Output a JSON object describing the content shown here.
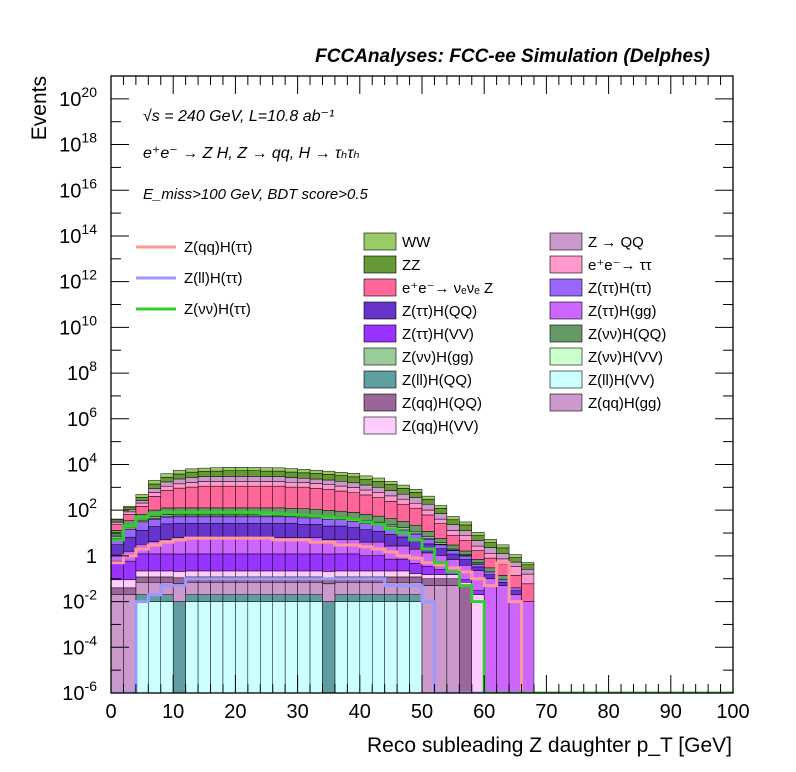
{
  "header_title": "FCCAnalyses: FCC-ee Simulation (Delphes)",
  "annotations": {
    "line1": "√s = 240 GeV, L=10.8 ab⁻¹",
    "line2": "e⁺e⁻ → Z H, Z → qq, H → τₕτₕ",
    "line3": "E_miss>100 GeV, BDT score>0.5"
  },
  "chart_data": {
    "type": "histogram",
    "xlabel": "Reco subleading Z daughter p_T [GeV]",
    "ylabel": "Events",
    "xlim": [
      0,
      100
    ],
    "ylim": [
      1e-06,
      1e+21
    ],
    "yscale": "log",
    "bin_width": 2,
    "x_ticks": [
      0,
      10,
      20,
      30,
      40,
      50,
      60,
      70,
      80,
      90,
      100
    ],
    "y_ticks": [
      "10^-6",
      "10^-4",
      "10^-2",
      "1",
      "10^2",
      "10^4",
      "10^6",
      "10^8",
      "10^10",
      "10^12",
      "10^14",
      "10^16",
      "10^18",
      "10^20"
    ],
    "stack_total": [
      40,
      150,
      550,
      2000,
      4000,
      5500,
      6500,
      7000,
      7200,
      7500,
      7500,
      7400,
      7200,
      7000,
      6500,
      6000,
      5500,
      5000,
      4500,
      4000,
      3000,
      2500,
      1800,
      1200,
      800,
      400,
      150,
      50,
      30,
      10,
      5,
      3,
      1,
      0.5
    ],
    "stacked_backgrounds": [
      {
        "name": "Z(ll)H(VV)",
        "color": "#ccffff",
        "values": [
          0,
          0,
          0.01,
          0.01,
          0.01,
          0,
          0.01,
          0.01,
          0.01,
          0.01,
          0.01,
          0.01,
          0.01,
          0.01,
          0.01,
          0.01,
          0.01,
          0,
          0.01,
          0.01,
          0.01,
          0.01,
          0.01,
          0.01,
          0.01,
          0,
          0,
          0,
          0,
          0,
          0,
          0,
          0,
          0
        ]
      },
      {
        "name": "Z(ll)H(QQ)",
        "color": "#5f9ea0",
        "values": [
          0,
          0,
          0.01,
          0.01,
          0.01,
          0.01,
          0.01,
          0.01,
          0.01,
          0.01,
          0.01,
          0.01,
          0.01,
          0.01,
          0.01,
          0.01,
          0.01,
          0.01,
          0.01,
          0.01,
          0.01,
          0.01,
          0.01,
          0.01,
          0.01,
          0,
          0,
          0,
          0,
          0,
          0,
          0,
          0,
          0
        ]
      },
      {
        "name": "Z(qq)H(gg)",
        "color": "#cc99cc",
        "values": [
          0.02,
          0.02,
          0.05,
          0.05,
          0.05,
          0.05,
          0.05,
          0.05,
          0.05,
          0.05,
          0.05,
          0.05,
          0.05,
          0.05,
          0.05,
          0.05,
          0.05,
          0.05,
          0.05,
          0.05,
          0.05,
          0.05,
          0.05,
          0.05,
          0.05,
          0.05,
          0.05,
          0.05,
          0,
          0,
          0,
          0,
          0,
          0
        ]
      },
      {
        "name": "Z(qq)H(QQ)",
        "color": "#996699",
        "values": [
          0.02,
          0.02,
          0.05,
          0.05,
          0.05,
          0.05,
          0.05,
          0.05,
          0.05,
          0.05,
          0.05,
          0.05,
          0.05,
          0.05,
          0.05,
          0.05,
          0.05,
          0.05,
          0.05,
          0.05,
          0.05,
          0.05,
          0.05,
          0.05,
          0.05,
          0.05,
          0.05,
          0.05,
          0.05,
          0,
          0,
          0,
          0,
          0
        ]
      },
      {
        "name": "Z(qq)H(VV)",
        "color": "#ffccff",
        "values": [
          0.05,
          0.05,
          0.1,
          0.1,
          0.1,
          0.1,
          0.1,
          0.1,
          0.1,
          0.1,
          0.1,
          0.1,
          0.1,
          0.1,
          0.1,
          0.1,
          0.1,
          0.1,
          0.1,
          0.1,
          0.1,
          0.1,
          0.1,
          0.1,
          0.05,
          0.05,
          0.05,
          0.05,
          0.02,
          0.02,
          0,
          0,
          0,
          0
        ]
      },
      {
        "name": "Z(ττ)H(VV)",
        "color": "#9933ff",
        "values": [
          0.5,
          0.5,
          1,
          1,
          1,
          1,
          1,
          1,
          1,
          1,
          1,
          1,
          1,
          1,
          1,
          1,
          1,
          1,
          1,
          1,
          0.8,
          0.8,
          0.5,
          0.5,
          0.3,
          0.2,
          0.1,
          0.05,
          0.02,
          0.01,
          0,
          0,
          0,
          0
        ]
      },
      {
        "name": "Z(ττ)H(gg)",
        "color": "#cc66ff",
        "values": [
          0.5,
          1,
          2,
          3,
          4,
          5,
          5,
          5,
          5,
          5,
          5,
          5,
          5,
          5,
          5,
          5,
          5,
          4,
          4,
          4,
          3,
          3,
          2,
          2,
          1.5,
          1,
          0.8,
          0.5,
          0.3,
          0.2,
          0.1,
          0.05,
          0.02,
          0.01
        ]
      },
      {
        "name": "Z(ττ)H(QQ)",
        "color": "#6633cc",
        "values": [
          2,
          5,
          10,
          15,
          20,
          20,
          20,
          20,
          20,
          20,
          20,
          20,
          20,
          20,
          20,
          18,
          18,
          15,
          15,
          12,
          10,
          8,
          6,
          4,
          3,
          2,
          1,
          0.5,
          0.3,
          0.1,
          0.05,
          0.02,
          0.01,
          0
        ]
      },
      {
        "name": "Z(ττ)H(ττ)",
        "color": "#9966ff",
        "values": [
          3,
          8,
          15,
          20,
          25,
          25,
          25,
          25,
          25,
          25,
          25,
          25,
          25,
          25,
          25,
          22,
          22,
          20,
          18,
          15,
          12,
          10,
          8,
          6,
          4,
          2,
          1,
          0.5,
          0.3,
          0.1,
          0.05,
          0.02,
          0.01,
          0
        ]
      },
      {
        "name": "Z(νν)H(VV)",
        "color": "#ccffcc",
        "values": [
          1,
          2,
          3,
          4,
          5,
          5,
          5,
          5,
          5,
          5,
          5,
          5,
          5,
          5,
          5,
          5,
          5,
          4,
          4,
          4,
          3,
          3,
          2,
          2,
          1,
          0.5,
          0.2,
          0.1,
          0.05,
          0.02,
          0,
          0,
          0,
          0
        ]
      },
      {
        "name": "Z(νν)H(gg)",
        "color": "#99cc99",
        "values": [
          1,
          3,
          5,
          8,
          10,
          10,
          10,
          10,
          10,
          10,
          10,
          10,
          10,
          10,
          10,
          10,
          9,
          9,
          8,
          8,
          6,
          5,
          4,
          3,
          2,
          1,
          0.5,
          0.2,
          0.1,
          0.05,
          0,
          0,
          0,
          0
        ]
      },
      {
        "name": "Z(νν)H(QQ)",
        "color": "#669966",
        "values": [
          5,
          15,
          30,
          50,
          60,
          60,
          60,
          60,
          60,
          60,
          60,
          60,
          60,
          60,
          55,
          55,
          50,
          45,
          40,
          35,
          30,
          25,
          20,
          15,
          10,
          5,
          2,
          1,
          0.5,
          0.2,
          0.1,
          0.05,
          0,
          0
        ]
      },
      {
        "name": "e⁺e⁻→ νₑνₑ Z",
        "color": "#ff6699",
        "values": [
          10,
          30,
          80,
          300,
          600,
          800,
          900,
          1000,
          1000,
          1000,
          1000,
          1000,
          1000,
          1000,
          900,
          900,
          800,
          700,
          600,
          500,
          400,
          300,
          200,
          150,
          100,
          50,
          20,
          5,
          3,
          1,
          0.5,
          0.3,
          0.1,
          0.05
        ]
      },
      {
        "name": "e⁺e⁻→ ττ",
        "color": "#ff99cc",
        "values": [
          5,
          20,
          60,
          200,
          400,
          500,
          600,
          700,
          700,
          700,
          700,
          700,
          700,
          700,
          650,
          600,
          550,
          500,
          450,
          400,
          300,
          250,
          180,
          120,
          80,
          40,
          15,
          5,
          3,
          1,
          0.5,
          0.3,
          0.2,
          0.1
        ]
      },
      {
        "name": "Z → QQ",
        "color": "#cc99cc",
        "values": [
          5,
          20,
          60,
          300,
          600,
          900,
          1000,
          1100,
          1100,
          1200,
          1200,
          1200,
          1100,
          1100,
          1000,
          900,
          850,
          800,
          700,
          600,
          500,
          400,
          300,
          200,
          150,
          80,
          30,
          10,
          5,
          2,
          1,
          0.5,
          0.2,
          0.1
        ]
      },
      {
        "name": "ZZ",
        "color": "#669933",
        "values": [
          5,
          25,
          100,
          500,
          1000,
          1500,
          2000,
          2000,
          2200,
          2300,
          2300,
          2300,
          2200,
          2200,
          2000,
          1800,
          1700,
          1600,
          1400,
          1300,
          1000,
          800,
          600,
          400,
          250,
          120,
          50,
          15,
          10,
          3,
          1.5,
          1,
          0.3,
          0.15
        ]
      },
      {
        "name": "WW",
        "color": "#99cc66",
        "values": [
          3,
          20,
          120,
          600,
          1200,
          1700,
          1800,
          2000,
          2100,
          2200,
          2200,
          2100,
          2100,
          2000,
          1900,
          1800,
          1600,
          1400,
          1300,
          1200,
          900,
          750,
          500,
          350,
          220,
          110,
          40,
          15,
          8,
          3,
          1.5,
          0.8,
          0.3,
          0.1
        ]
      }
    ],
    "signal_lines": [
      {
        "name": "Z(qq)H(ττ)",
        "color": "#ff9999",
        "values": [
          0.5,
          1,
          2,
          3,
          4,
          5,
          6,
          6,
          6,
          6,
          6,
          6,
          6,
          5,
          5,
          5,
          4,
          4,
          3,
          3,
          2.5,
          2,
          1.5,
          1,
          0.8,
          0.5,
          0.4,
          0.3,
          0.2,
          0.1,
          0.05,
          0.5,
          0.01,
          0
        ]
      },
      {
        "name": "Z(ll)H(ττ)",
        "color": "#9999ff",
        "values": [
          0,
          0,
          0.01,
          0.02,
          0.05,
          0.05,
          0.1,
          0.1,
          0.1,
          0.1,
          0.1,
          0.1,
          0.1,
          0.1,
          0.1,
          0.1,
          0.1,
          0.1,
          0.1,
          0.1,
          0.1,
          0.1,
          0.05,
          0.05,
          0.05,
          0.01,
          0,
          0,
          0,
          0,
          0,
          0,
          0,
          0
        ]
      },
      {
        "name": "Z(νν)H(ττ)",
        "color": "#33cc33",
        "values": [
          5,
          20,
          50,
          70,
          80,
          80,
          80,
          80,
          80,
          80,
          80,
          80,
          75,
          70,
          65,
          60,
          55,
          50,
          45,
          40,
          30,
          25,
          15,
          10,
          5,
          2,
          0.5,
          0.2,
          0.05,
          0.01,
          0,
          0,
          0,
          0
        ]
      }
    ],
    "legend_lines": [
      "Z(qq)H(ττ)",
      "Z(ll)H(ττ)",
      "Z(νν)H(ττ)"
    ],
    "legend_boxes_col1": [
      "WW",
      "ZZ",
      "e⁺e⁻→ νₑνₑ Z",
      "Z(ττ)H(QQ)",
      "Z(ττ)H(VV)",
      "Z(νν)H(gg)",
      "Z(ll)H(QQ)",
      "Z(qq)H(QQ)",
      "Z(qq)H(VV)"
    ],
    "legend_boxes_col2": [
      "Z → QQ",
      "e⁺e⁻→ ττ",
      "Z(ττ)H(ττ)",
      "Z(ττ)H(gg)",
      "Z(νν)H(QQ)",
      "Z(νν)H(VV)",
      "Z(ll)H(VV)",
      "Z(qq)H(gg)"
    ]
  }
}
